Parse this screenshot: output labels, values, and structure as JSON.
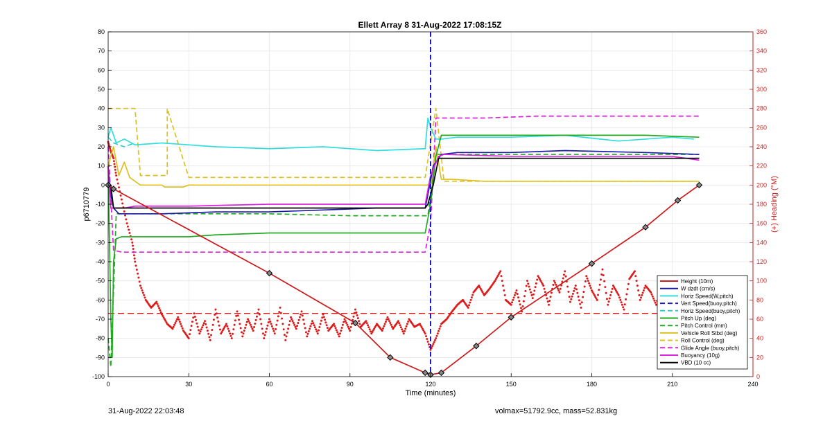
{
  "footer": {
    "timestamp": "31-Aug-2022 22:03:48",
    "mass_info": "volmax=51792.9cc, mass=52.831kg"
  },
  "chart_data": {
    "type": "line",
    "title": "Ellett Array 8 31-Aug-2022 17:08:15Z",
    "xlabel": "Time (minutes)",
    "ylabel": "p6710779",
    "y2label": "(+) Heading (°M)",
    "xlim": [
      0,
      240
    ],
    "ylim": [
      -100,
      80
    ],
    "y2lim": [
      0,
      360
    ],
    "xticks": [
      0,
      30,
      60,
      90,
      120,
      150,
      180,
      210,
      240
    ],
    "yticks": [
      -100,
      -90,
      -80,
      -70,
      -60,
      -50,
      -40,
      -30,
      -20,
      -10,
      0,
      10,
      20,
      30,
      40,
      50,
      60,
      70,
      80
    ],
    "y2ticks": [
      0,
      20,
      40,
      60,
      80,
      100,
      120,
      140,
      160,
      180,
      200,
      220,
      240,
      260,
      280,
      300,
      320,
      340,
      360
    ],
    "grid": true,
    "legend_position": "bottom-right",
    "colors": {
      "height": "#cc1a1a",
      "wdzdt": "#1a1aaa",
      "hspeed_wpitch": "#33dddd",
      "vspeed": "#1a1acc",
      "hspeed_buoy": "#33cccc",
      "pitch_up": "#22aa22",
      "pitch_control": "#22aa22",
      "roll": "#ddc020",
      "roll_control": "#ddc020",
      "glide": "#dd22dd",
      "buoyancy": "#dd22dd",
      "vbd": "#000000",
      "heading": "#dd1a1a",
      "right_axis": "#cc2222"
    },
    "series": [
      {
        "name": "Height (10m)",
        "key": "height",
        "style": "solid",
        "x": [
          0,
          2,
          60,
          92,
          105,
          118,
          120,
          124,
          137,
          150,
          180,
          200,
          212,
          220
        ],
        "y": [
          0,
          -2,
          -46,
          -72,
          -90,
          -98,
          -99,
          -98,
          -84,
          -69,
          -41,
          -22,
          -8,
          0
        ]
      },
      {
        "name": "W dzdt (cm/s)",
        "key": "wdzdt",
        "style": "solid",
        "x": [
          0,
          1,
          2,
          4,
          8,
          20,
          40,
          60,
          80,
          100,
          118,
          119,
          121,
          124,
          130,
          150,
          170,
          200,
          220
        ],
        "y": [
          10,
          -5,
          -12,
          -15,
          -15,
          -15,
          -14,
          -14,
          -13,
          -12,
          -12,
          -5,
          10,
          16,
          17,
          17,
          18,
          17,
          16
        ]
      },
      {
        "name": "Horiz Speed(W,pitch)",
        "key": "hspeed_wpitch",
        "style": "solid",
        "x": [
          0,
          1,
          3,
          6,
          10,
          20,
          40,
          60,
          80,
          100,
          118,
          119,
          120,
          122,
          124,
          130,
          150,
          170,
          190,
          210,
          218
        ],
        "y": [
          25,
          30,
          22,
          24,
          21,
          22,
          20,
          19,
          20,
          18,
          19,
          35,
          30,
          24,
          24,
          25,
          25,
          26,
          23,
          25,
          24
        ]
      },
      {
        "name": "Vert Speed(buoy,pitch)",
        "key": "vspeed",
        "style": "dashed",
        "x": [
          120,
          120
        ],
        "y": [
          80,
          -100
        ]
      },
      {
        "name": "Horiz Speed(buoy,pitch)",
        "key": "hspeed_buoy",
        "style": "dashed",
        "x": [
          0,
          2,
          6,
          10
        ],
        "y": [
          25,
          22,
          20,
          22
        ]
      },
      {
        "name": "Pitch Up (deg)",
        "key": "pitch_up",
        "style": "solid",
        "x": [
          0,
          1,
          1.5,
          2,
          3,
          5,
          10,
          20,
          30,
          40,
          60,
          80,
          100,
          118,
          120,
          122,
          124,
          130,
          150,
          170,
          200,
          220
        ],
        "y": [
          10,
          -70,
          -90,
          -40,
          -28,
          -27,
          -27,
          -27,
          -27,
          -26,
          -25,
          -25,
          -25,
          -25,
          -10,
          15,
          26,
          26,
          26,
          26,
          26,
          25
        ]
      },
      {
        "name": "Pitch Control (mm)",
        "key": "pitch_control",
        "style": "dashed",
        "x": [
          0,
          1,
          3,
          10,
          30,
          60,
          90,
          118,
          119,
          122,
          125,
          150,
          180,
          210,
          220
        ],
        "y": [
          -80,
          -95,
          -15,
          -15,
          -15,
          -15,
          -16,
          -16,
          -16,
          16,
          16,
          16,
          16,
          16,
          16
        ]
      },
      {
        "name": "Vehicle Roll Stbd (deg)",
        "key": "roll",
        "style": "solid",
        "x": [
          0,
          2,
          4,
          6,
          8,
          10,
          12,
          15,
          20,
          21,
          22,
          25,
          28,
          30,
          40,
          60,
          80,
          100,
          118,
          120,
          122,
          124,
          128,
          140,
          160,
          180,
          200,
          215,
          220
        ],
        "y": [
          10,
          20,
          5,
          12,
          4,
          2,
          0,
          0,
          0,
          -1,
          -1,
          -1,
          -1,
          0,
          0,
          0,
          0,
          0,
          0,
          0,
          20,
          3,
          3,
          2,
          2,
          2,
          2,
          2,
          2
        ]
      },
      {
        "name": "Roll Control (deg)",
        "key": "roll_control",
        "style": "dashed",
        "x": [
          0,
          2,
          4,
          6,
          8,
          10,
          12,
          15,
          22,
          22,
          30,
          40,
          60,
          80,
          100,
          118,
          122,
          125,
          140,
          160,
          180,
          200,
          215,
          220
        ],
        "y": [
          40,
          40,
          40,
          40,
          40,
          40,
          5,
          5,
          5,
          40,
          4,
          4,
          4,
          4,
          4,
          4,
          40,
          2,
          2,
          2,
          2,
          2,
          2,
          2
        ]
      },
      {
        "name": "Glide Angle (buoy,pitch)",
        "key": "glide",
        "style": "dashed",
        "x": [
          0,
          2,
          5,
          10,
          30,
          60,
          90,
          117,
          118,
          120,
          122,
          124,
          140,
          160,
          180,
          200,
          220
        ],
        "y": [
          20,
          -34,
          -35,
          -35,
          -35,
          -35,
          -35,
          -35,
          -35,
          -20,
          35,
          35,
          35,
          36,
          36,
          36,
          36
        ]
      },
      {
        "name": "Buoyancy (10g)",
        "key": "buoyancy",
        "style": "solid",
        "x": [
          0,
          1,
          3,
          6,
          10,
          30,
          60,
          90,
          118,
          120,
          123,
          125,
          150,
          180,
          210,
          220
        ],
        "y": [
          10,
          -12,
          -12,
          -12,
          -11,
          -11,
          -10,
          -10,
          -10,
          5,
          15,
          16,
          15,
          15,
          15,
          13
        ]
      },
      {
        "name": "VBD (10 cc)",
        "key": "vbd",
        "style": "solid",
        "x": [
          0,
          1,
          2,
          10,
          30,
          60,
          90,
          118,
          119,
          121,
          123,
          125,
          150,
          180,
          210,
          220
        ],
        "y": [
          0,
          0,
          -12,
          -12,
          -12,
          -12,
          -12,
          -12,
          -10,
          0,
          14,
          14,
          14,
          14,
          14,
          14
        ]
      }
    ],
    "heading_series": {
      "key": "heading",
      "axis": "right",
      "style": "dots",
      "x": [
        0,
        1,
        2,
        3,
        5,
        7,
        9,
        10,
        12,
        14,
        16,
        18,
        20,
        22,
        24,
        26,
        28,
        30,
        32,
        34,
        36,
        38,
        40,
        42,
        44,
        46,
        48,
        50,
        52,
        54,
        56,
        58,
        60,
        62,
        64,
        66,
        68,
        70,
        72,
        74,
        76,
        78,
        80,
        82,
        84,
        86,
        88,
        90,
        92,
        94,
        96,
        98,
        100,
        102,
        104,
        106,
        108,
        110,
        112,
        114,
        116,
        118,
        120,
        122,
        124,
        126,
        128,
        130,
        132,
        134,
        136,
        138,
        140,
        142,
        144,
        146,
        148,
        150,
        152,
        154,
        156,
        158,
        160,
        162,
        164,
        166,
        168,
        170,
        172,
        174,
        176,
        178,
        180,
        182,
        184,
        186,
        188,
        190,
        192,
        194,
        196,
        198,
        200,
        202,
        204,
        206,
        208,
        210,
        212,
        214,
        216,
        218,
        220
      ],
      "y": [
        245,
        235,
        228,
        210,
        185,
        160,
        140,
        120,
        95,
        80,
        72,
        78,
        65,
        55,
        50,
        62,
        48,
        40,
        66,
        45,
        58,
        38,
        70,
        45,
        55,
        40,
        68,
        42,
        60,
        48,
        70,
        40,
        60,
        45,
        72,
        38,
        62,
        50,
        68,
        42,
        58,
        45,
        65,
        48,
        55,
        42,
        60,
        48,
        70,
        52,
        58,
        45,
        55,
        48,
        62,
        50,
        58,
        45,
        60,
        52,
        55,
        45,
        28,
        40,
        55,
        60,
        68,
        75,
        80,
        72,
        88,
        95,
        85,
        92,
        100,
        110,
        80,
        75,
        90,
        68,
        100,
        82,
        105,
        95,
        75,
        100,
        88,
        110,
        78,
        95,
        72,
        105,
        90,
        80,
        112,
        75,
        95,
        85,
        70,
        102,
        110,
        80,
        95,
        88,
        75,
        100,
        68,
        85,
        58,
        60,
        55,
        52,
        50
      ]
    },
    "heading_reference": {
      "key": "heading",
      "style": "dashed",
      "y": 66
    }
  }
}
